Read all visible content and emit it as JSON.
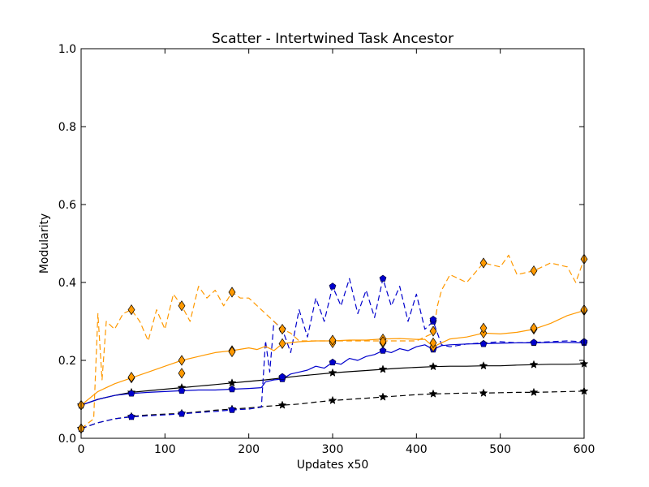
{
  "chart_data": {
    "type": "line",
    "title": "Scatter - Intertwined Task Ancestor",
    "xlabel": "Updates x50",
    "ylabel": "Modularity",
    "xlim": [
      0,
      600
    ],
    "ylim": [
      0.0,
      1.0
    ],
    "xticks": [
      0,
      100,
      200,
      300,
      400,
      500,
      600
    ],
    "xtick_labels": [
      "0",
      "100",
      "200",
      "300",
      "400",
      "500",
      "600"
    ],
    "yticks": [
      0.0,
      0.2,
      0.4,
      0.6,
      0.8,
      1.0
    ],
    "ytick_labels": [
      "0.0",
      "0.2",
      "0.4",
      "0.6",
      "0.8",
      "1.0"
    ],
    "grid": false,
    "legend": "none",
    "series": [
      {
        "color": "#000000",
        "linestyle": "solid",
        "marker": "star",
        "x": [
          0,
          20,
          40,
          60,
          80,
          100,
          120,
          140,
          160,
          180,
          200,
          220,
          240,
          260,
          280,
          300,
          320,
          340,
          360,
          380,
          400,
          420,
          440,
          460,
          480,
          500,
          520,
          540,
          560,
          580,
          600
        ],
        "y": [
          0.085,
          0.1,
          0.11,
          0.118,
          0.122,
          0.126,
          0.13,
          0.134,
          0.138,
          0.142,
          0.146,
          0.15,
          0.155,
          0.16,
          0.164,
          0.168,
          0.171,
          0.174,
          0.177,
          0.18,
          0.182,
          0.184,
          0.185,
          0.185,
          0.186,
          0.186,
          0.188,
          0.189,
          0.19,
          0.19,
          0.191
        ],
        "marker_x": [
          0,
          60,
          120,
          180,
          240,
          300,
          360,
          420,
          480,
          540,
          600
        ],
        "marker_y": [
          0.085,
          0.118,
          0.13,
          0.142,
          0.155,
          0.168,
          0.177,
          0.184,
          0.186,
          0.189,
          0.191
        ]
      },
      {
        "color": "#000000",
        "linestyle": "dashed",
        "marker": "star",
        "x": [
          0,
          20,
          40,
          60,
          80,
          100,
          120,
          140,
          160,
          180,
          200,
          220,
          240,
          260,
          280,
          300,
          320,
          340,
          360,
          380,
          400,
          420,
          440,
          460,
          480,
          500,
          520,
          540,
          560,
          580,
          600
        ],
        "y": [
          0.025,
          0.04,
          0.05,
          0.056,
          0.06,
          0.062,
          0.064,
          0.068,
          0.072,
          0.075,
          0.078,
          0.082,
          0.085,
          0.088,
          0.093,
          0.097,
          0.1,
          0.103,
          0.106,
          0.109,
          0.112,
          0.114,
          0.115,
          0.116,
          0.116,
          0.117,
          0.118,
          0.118,
          0.119,
          0.12,
          0.121
        ],
        "marker_x": [
          0,
          60,
          120,
          180,
          240,
          300,
          360,
          420,
          480,
          540,
          600
        ],
        "marker_y": [
          0.025,
          0.056,
          0.064,
          0.075,
          0.085,
          0.097,
          0.106,
          0.114,
          0.116,
          0.118,
          0.121
        ]
      },
      {
        "color": "#0000cc",
        "linestyle": "solid",
        "marker": "pentagon",
        "x": [
          0,
          20,
          40,
          60,
          80,
          100,
          120,
          140,
          160,
          180,
          200,
          215,
          220,
          230,
          240,
          250,
          260,
          270,
          280,
          290,
          300,
          310,
          320,
          330,
          340,
          350,
          360,
          370,
          380,
          390,
          400,
          410,
          420,
          430,
          440,
          460,
          480,
          500,
          520,
          540,
          560,
          580,
          600
        ],
        "y": [
          0.085,
          0.1,
          0.11,
          0.115,
          0.118,
          0.12,
          0.122,
          0.124,
          0.124,
          0.126,
          0.128,
          0.13,
          0.145,
          0.15,
          0.152,
          0.165,
          0.17,
          0.175,
          0.185,
          0.18,
          0.195,
          0.19,
          0.205,
          0.2,
          0.21,
          0.215,
          0.225,
          0.22,
          0.23,
          0.225,
          0.235,
          0.24,
          0.228,
          0.238,
          0.24,
          0.242,
          0.243,
          0.244,
          0.245,
          0.245,
          0.246,
          0.246,
          0.245
        ],
        "marker_x": [
          0,
          60,
          120,
          180,
          240,
          300,
          360,
          420,
          480,
          540,
          600
        ],
        "marker_y": [
          0.085,
          0.115,
          0.122,
          0.126,
          0.152,
          0.195,
          0.225,
          0.228,
          0.243,
          0.245,
          0.245
        ]
      },
      {
        "color": "#0000cc",
        "linestyle": "dashed",
        "marker": "pentagon",
        "x": [
          0,
          20,
          40,
          60,
          80,
          100,
          120,
          140,
          160,
          180,
          200,
          215,
          220,
          225,
          230,
          240,
          250,
          260,
          270,
          280,
          290,
          300,
          310,
          320,
          330,
          340,
          350,
          360,
          370,
          380,
          390,
          400,
          410,
          420,
          430,
          440,
          460,
          480,
          500,
          520,
          540,
          560,
          580,
          600
        ],
        "y": [
          0.025,
          0.04,
          0.05,
          0.055,
          0.058,
          0.06,
          0.063,
          0.066,
          0.069,
          0.073,
          0.075,
          0.08,
          0.25,
          0.17,
          0.3,
          0.28,
          0.22,
          0.33,
          0.26,
          0.36,
          0.3,
          0.39,
          0.34,
          0.41,
          0.32,
          0.38,
          0.31,
          0.41,
          0.34,
          0.39,
          0.3,
          0.37,
          0.28,
          0.3,
          0.24,
          0.235,
          0.242,
          0.245,
          0.248,
          0.245,
          0.246,
          0.248,
          0.25,
          0.248
        ],
        "marker_x": [
          0,
          60,
          120,
          180,
          240,
          300,
          360,
          420,
          480,
          540,
          600
        ],
        "marker_y": [
          0.025,
          0.055,
          0.063,
          0.073,
          0.28,
          0.39,
          0.41,
          0.3,
          0.242,
          0.246,
          0.248
        ]
      },
      {
        "color": "#ff9900",
        "linestyle": "solid",
        "marker": "diamond",
        "x": [
          0,
          20,
          40,
          60,
          80,
          100,
          120,
          140,
          160,
          180,
          200,
          210,
          220,
          230,
          240,
          260,
          280,
          300,
          320,
          340,
          360,
          380,
          400,
          410,
          420,
          440,
          460,
          480,
          500,
          520,
          540,
          560,
          580,
          600
        ],
        "y": [
          0.085,
          0.12,
          0.14,
          0.155,
          0.17,
          0.185,
          0.2,
          0.21,
          0.22,
          0.225,
          0.232,
          0.228,
          0.236,
          0.225,
          0.243,
          0.248,
          0.25,
          0.25,
          0.252,
          0.252,
          0.255,
          0.256,
          0.254,
          0.254,
          0.235,
          0.255,
          0.26,
          0.27,
          0.268,
          0.272,
          0.28,
          0.295,
          0.315,
          0.328
        ],
        "marker_x": [
          0,
          60,
          120,
          180,
          240,
          300,
          360,
          420,
          480,
          540,
          600
        ],
        "marker_y": [
          0.085,
          0.155,
          0.2,
          0.225,
          0.243,
          0.25,
          0.255,
          0.235,
          0.27,
          0.28,
          0.328
        ]
      },
      {
        "color": "#ff9900",
        "linestyle": "dashed",
        "marker": "diamond",
        "x": [
          0,
          15,
          20,
          25,
          30,
          40,
          50,
          60,
          70,
          80,
          90,
          100,
          110,
          120,
          130,
          140,
          150,
          160,
          170,
          180,
          190,
          200,
          210,
          220,
          230,
          240,
          250,
          260,
          280,
          300,
          320,
          340,
          360,
          380,
          400,
          410,
          420,
          425,
          430,
          440,
          460,
          480,
          500,
          510,
          520,
          540,
          560,
          580,
          590,
          600
        ],
        "y": [
          0.025,
          0.05,
          0.32,
          0.15,
          0.3,
          0.28,
          0.32,
          0.33,
          0.3,
          0.25,
          0.33,
          0.28,
          0.37,
          0.34,
          0.3,
          0.39,
          0.36,
          0.38,
          0.34,
          0.375,
          0.36,
          0.36,
          0.34,
          0.32,
          0.3,
          0.28,
          0.27,
          0.25,
          0.25,
          0.25,
          0.25,
          0.25,
          0.25,
          0.25,
          0.25,
          0.26,
          0.27,
          0.34,
          0.38,
          0.42,
          0.4,
          0.45,
          0.44,
          0.47,
          0.42,
          0.43,
          0.45,
          0.44,
          0.4,
          0.46
        ],
        "marker_x": [
          0,
          60,
          120,
          180,
          240,
          300,
          360,
          420,
          480,
          540,
          600
        ],
        "marker_y": [
          0.025,
          0.33,
          0.34,
          0.375,
          0.28,
          0.245,
          0.245,
          0.275,
          0.45,
          0.43,
          0.46
        ]
      }
    ],
    "extra_markers": [
      {
        "color": "#ff9900",
        "marker": "diamond",
        "x": [
          60,
          120,
          180,
          300,
          360,
          420,
          480,
          540,
          600
        ],
        "y": [
          0.157,
          0.167,
          0.222,
          0.252,
          0.248,
          0.245,
          0.283,
          0.283,
          0.33
        ]
      },
      {
        "color": "#0000cc",
        "marker": "pentagon",
        "x": [
          240,
          420
        ],
        "y": [
          0.158,
          0.305
        ]
      }
    ]
  }
}
